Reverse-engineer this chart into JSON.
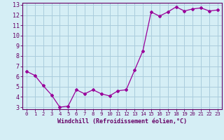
{
  "x": [
    0,
    1,
    2,
    3,
    4,
    5,
    6,
    7,
    8,
    9,
    10,
    11,
    12,
    13,
    14,
    15,
    16,
    17,
    18,
    19,
    20,
    21,
    22,
    23
  ],
  "y": [
    6.5,
    6.1,
    5.1,
    4.2,
    3.0,
    3.1,
    4.7,
    4.3,
    4.7,
    4.3,
    4.1,
    4.6,
    4.7,
    6.6,
    8.5,
    12.3,
    11.9,
    12.3,
    12.8,
    12.4,
    12.6,
    12.7,
    12.4,
    12.5
  ],
  "line_color": "#990099",
  "marker": "D",
  "marker_size": 2,
  "bg_color": "#d5eef5",
  "grid_color": "#aaccdd",
  "xlabel": "Windchill (Refroidissement éolien,°C)",
  "ylim": [
    3,
    13
  ],
  "xlim": [
    -0.5,
    23.5
  ],
  "yticks": [
    3,
    4,
    5,
    6,
    7,
    8,
    9,
    10,
    11,
    12,
    13
  ],
  "xticks": [
    0,
    1,
    2,
    3,
    4,
    5,
    6,
    7,
    8,
    9,
    10,
    11,
    12,
    13,
    14,
    15,
    16,
    17,
    18,
    19,
    20,
    21,
    22,
    23
  ],
  "axis_color": "#660066",
  "tick_color": "#660066",
  "label_color": "#660066",
  "xlabel_fontsize": 6.0,
  "ytick_fontsize": 6.0,
  "xtick_fontsize": 5.2
}
